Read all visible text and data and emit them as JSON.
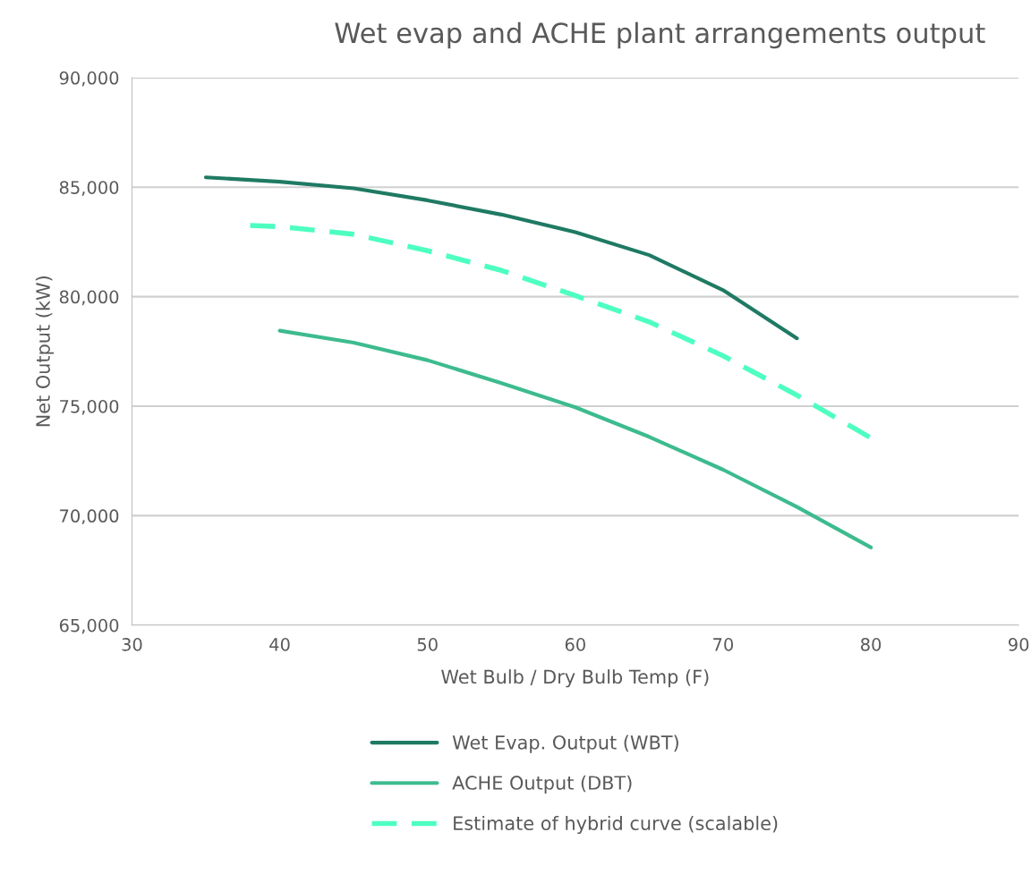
{
  "chart_data": {
    "type": "line",
    "title": "Wet evap and ACHE plant arrangements output",
    "xlabel": "Wet Bulb / Dry Bulb Temp (F)",
    "ylabel": "Net Output (kW)",
    "xlim": [
      30,
      90
    ],
    "xticks": [
      30,
      40,
      50,
      60,
      70,
      80,
      90
    ],
    "ylim": [
      65000,
      90000
    ],
    "yticks": [
      {
        "value": 65000,
        "label": "65,000"
      },
      {
        "value": 70000,
        "label": "70,000"
      },
      {
        "value": 75000,
        "label": "75,000"
      },
      {
        "value": 80000,
        "label": "80,000"
      },
      {
        "value": 85000,
        "label": "85,000"
      },
      {
        "value": 90000,
        "label": "90,000"
      }
    ],
    "grid": "y",
    "legend": "bottom",
    "marker": "none",
    "series": [
      {
        "name": "Wet Evap. Output (WBT)",
        "color": "#1f7a63",
        "line_style": "solid",
        "x": [
          35,
          40,
          45,
          50,
          55,
          60,
          65,
          70,
          75
        ],
        "values": [
          85450,
          85250,
          84950,
          84400,
          83750,
          82950,
          81900,
          80300,
          78100
        ]
      },
      {
        "name": "ACHE Output (DBT)",
        "color": "#3dbb8e",
        "line_style": "solid",
        "x": [
          40,
          45,
          50,
          55,
          60,
          65,
          70,
          75,
          80
        ],
        "values": [
          78450,
          77900,
          77100,
          76050,
          74950,
          73600,
          72100,
          70400,
          68550
        ]
      },
      {
        "name": "Estimate of hybrid curve (scalable)",
        "color": "#4dffc0",
        "line_style": "dashed",
        "x": [
          38,
          40,
          45,
          50,
          55,
          60,
          65,
          70,
          75,
          80
        ],
        "values": [
          83250,
          83200,
          82850,
          82100,
          81200,
          80050,
          78850,
          77300,
          75500,
          73550
        ]
      }
    ]
  }
}
